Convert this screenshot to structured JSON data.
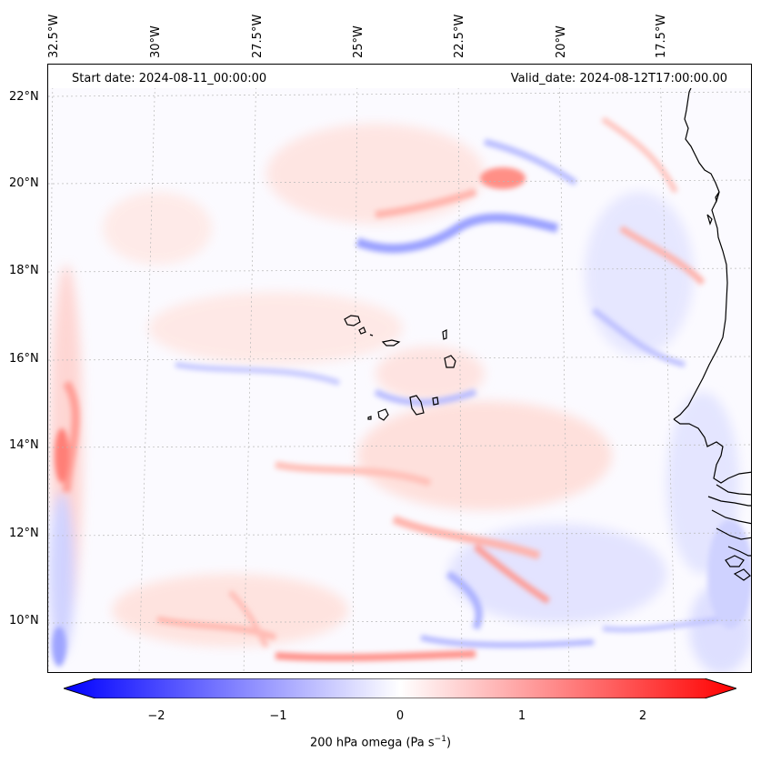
{
  "header": {
    "start_date": "Start date: 2024-08-11_00:00:00",
    "valid_date": "Valid_date: 2024-08-12T17:00:00.00"
  },
  "axes": {
    "longitude_labels": [
      "32.5°W",
      "30°W",
      "27.5°W",
      "25°W",
      "22.5°W",
      "20°W",
      "17.5°W"
    ],
    "latitude_labels": [
      "22°N",
      "20°N",
      "18°N",
      "16°N",
      "14°N",
      "12°N",
      "10°N"
    ]
  },
  "colorbar": {
    "label": "200 hPa omega (Pa s",
    "label_sup": "−1",
    "label_end": ")",
    "ticks": [
      "−2",
      "−1",
      "0",
      "1",
      "2"
    ],
    "range": [
      -2.75,
      2.75
    ],
    "colors": {
      "negative": "#0000ff",
      "zero": "#ffffff",
      "positive": "#ff0000"
    },
    "extend": "both"
  },
  "map": {
    "region": "Eastern tropical Atlantic, Cape Verde islands and West African coast",
    "gridlines": true,
    "colormap": "bwr"
  }
}
